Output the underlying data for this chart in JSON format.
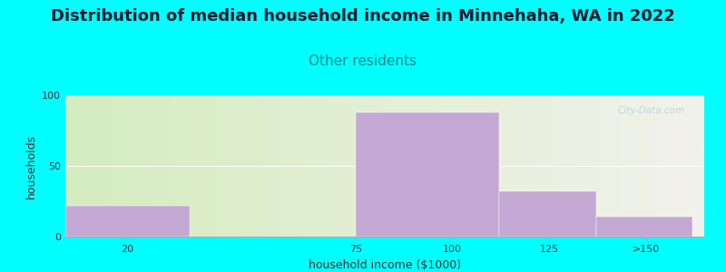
{
  "title": "Distribution of median household income in Minnehaha, WA in 2022",
  "subtitle": "Other residents",
  "xlabel": "household income ($1000)",
  "ylabel": "households",
  "background_color": "#00FFFF",
  "plot_bg_gradient_left": "#d4ecbf",
  "plot_bg_gradient_right": "#f2f2ec",
  "bar_color": "#c4a8d4",
  "bar_edgecolor": "#c4a8d4",
  "values": [
    22,
    0,
    88,
    32,
    14
  ],
  "bar_lefts": [
    0,
    32,
    75,
    112,
    137
  ],
  "bar_rights": [
    32,
    75,
    112,
    137,
    162
  ],
  "xtick_positions": [
    16,
    75,
    100,
    125,
    150
  ],
  "xtick_labels": [
    "20",
    "75",
    "100",
    "125",
    ">150"
  ],
  "xlim": [
    0,
    165
  ],
  "ylim": [
    0,
    100
  ],
  "yticks": [
    0,
    50,
    100
  ],
  "title_fontsize": 13,
  "subtitle_fontsize": 11,
  "subtitle_color": "#008888",
  "axis_label_fontsize": 9,
  "watermark": "City-Data.com",
  "text_color": "#1a1a2e"
}
